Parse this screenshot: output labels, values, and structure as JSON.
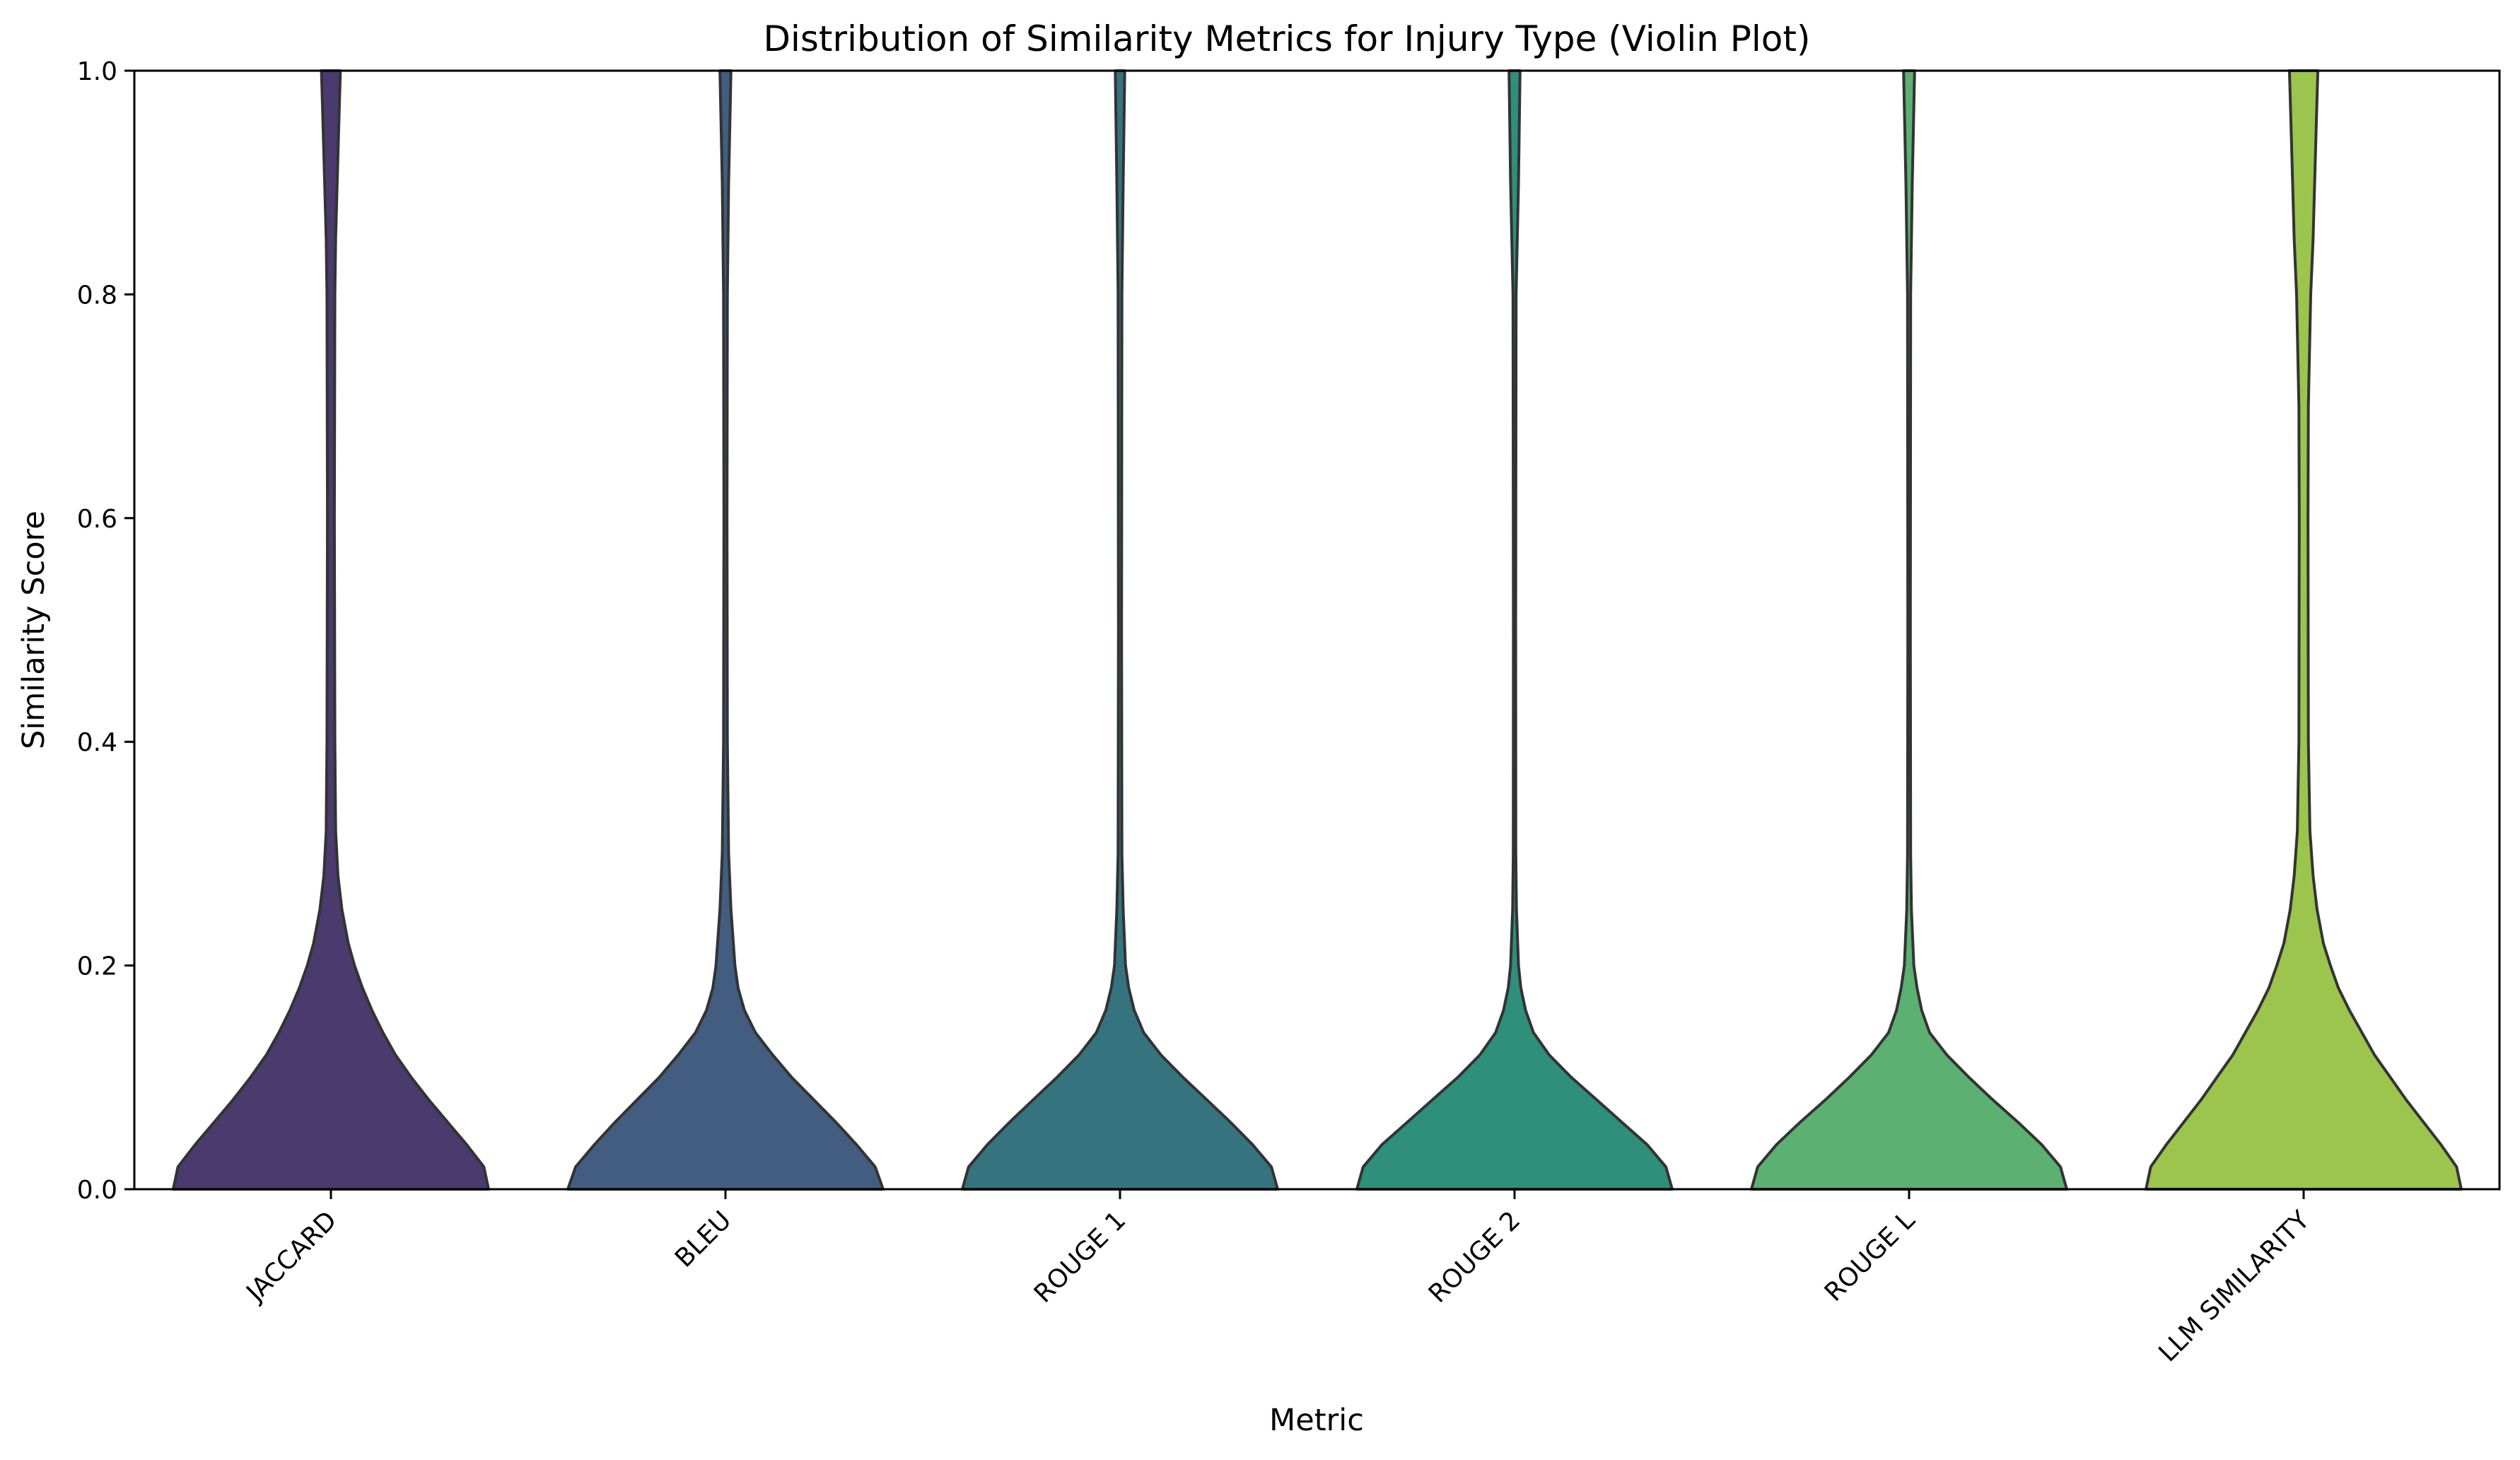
{
  "chart_data": {
    "type": "violin",
    "title": "Distribution of Similarity Metrics for Injury Type (Violin Plot)",
    "xlabel": "Metric",
    "ylabel": "Similarity Score",
    "ylim": [
      0,
      1.0
    ],
    "yticks": [
      "0.0",
      "0.2",
      "0.4",
      "0.6",
      "0.8",
      "1.0"
    ],
    "grid": false,
    "categories": [
      "JACCARD",
      "BLEU",
      "ROUGE 1",
      "ROUGE 2",
      "ROUGE L",
      "LLM SIMILARITY"
    ],
    "colors": [
      "#4a3a6e",
      "#425d80",
      "#35747f",
      "#2e8f7b",
      "#5bb072",
      "#9bc54c"
    ],
    "edge_color": "#333333",
    "density_profiles": [
      {
        "metric": "JACCARD",
        "points": [
          [
            0.0,
            1.0
          ],
          [
            0.02,
            0.97
          ],
          [
            0.04,
            0.86
          ],
          [
            0.06,
            0.74
          ],
          [
            0.08,
            0.62
          ],
          [
            0.1,
            0.51
          ],
          [
            0.12,
            0.41
          ],
          [
            0.14,
            0.33
          ],
          [
            0.16,
            0.26
          ],
          [
            0.18,
            0.2
          ],
          [
            0.2,
            0.15
          ],
          [
            0.22,
            0.11
          ],
          [
            0.25,
            0.07
          ],
          [
            0.28,
            0.045
          ],
          [
            0.32,
            0.03
          ],
          [
            0.4,
            0.025
          ],
          [
            0.6,
            0.022
          ],
          [
            0.8,
            0.025
          ],
          [
            0.85,
            0.03
          ],
          [
            0.9,
            0.04
          ],
          [
            0.95,
            0.05
          ],
          [
            1.0,
            0.06
          ]
        ]
      },
      {
        "metric": "BLEU",
        "points": [
          [
            0.0,
            1.0
          ],
          [
            0.02,
            0.95
          ],
          [
            0.04,
            0.83
          ],
          [
            0.06,
            0.7
          ],
          [
            0.08,
            0.56
          ],
          [
            0.1,
            0.42
          ],
          [
            0.12,
            0.3
          ],
          [
            0.14,
            0.19
          ],
          [
            0.16,
            0.12
          ],
          [
            0.18,
            0.08
          ],
          [
            0.2,
            0.06
          ],
          [
            0.25,
            0.035
          ],
          [
            0.3,
            0.02
          ],
          [
            0.4,
            0.012
          ],
          [
            0.6,
            0.01
          ],
          [
            0.8,
            0.012
          ],
          [
            0.9,
            0.02
          ],
          [
            1.0,
            0.035
          ]
        ]
      },
      {
        "metric": "ROUGE 1",
        "points": [
          [
            0.0,
            1.0
          ],
          [
            0.02,
            0.96
          ],
          [
            0.04,
            0.84
          ],
          [
            0.06,
            0.7
          ],
          [
            0.08,
            0.55
          ],
          [
            0.1,
            0.4
          ],
          [
            0.12,
            0.26
          ],
          [
            0.14,
            0.15
          ],
          [
            0.16,
            0.09
          ],
          [
            0.18,
            0.055
          ],
          [
            0.2,
            0.035
          ],
          [
            0.25,
            0.02
          ],
          [
            0.3,
            0.012
          ],
          [
            0.5,
            0.01
          ],
          [
            0.8,
            0.012
          ],
          [
            0.9,
            0.02
          ],
          [
            1.0,
            0.03
          ]
        ]
      },
      {
        "metric": "ROUGE 2",
        "points": [
          [
            0.0,
            1.0
          ],
          [
            0.02,
            0.96
          ],
          [
            0.04,
            0.84
          ],
          [
            0.06,
            0.68
          ],
          [
            0.08,
            0.52
          ],
          [
            0.1,
            0.36
          ],
          [
            0.12,
            0.22
          ],
          [
            0.14,
            0.12
          ],
          [
            0.16,
            0.07
          ],
          [
            0.18,
            0.04
          ],
          [
            0.2,
            0.025
          ],
          [
            0.25,
            0.012
          ],
          [
            0.3,
            0.008
          ],
          [
            0.5,
            0.007
          ],
          [
            0.8,
            0.01
          ],
          [
            0.9,
            0.025
          ],
          [
            1.0,
            0.035
          ]
        ]
      },
      {
        "metric": "ROUGE L",
        "points": [
          [
            0.0,
            1.0
          ],
          [
            0.02,
            0.96
          ],
          [
            0.04,
            0.84
          ],
          [
            0.06,
            0.69
          ],
          [
            0.08,
            0.53
          ],
          [
            0.1,
            0.38
          ],
          [
            0.12,
            0.24
          ],
          [
            0.14,
            0.13
          ],
          [
            0.16,
            0.08
          ],
          [
            0.18,
            0.05
          ],
          [
            0.2,
            0.03
          ],
          [
            0.25,
            0.015
          ],
          [
            0.3,
            0.01
          ],
          [
            0.5,
            0.008
          ],
          [
            0.8,
            0.01
          ],
          [
            0.9,
            0.02
          ],
          [
            1.0,
            0.035
          ]
        ]
      },
      {
        "metric": "LLM SIMILARITY",
        "points": [
          [
            0.0,
            1.0
          ],
          [
            0.02,
            0.97
          ],
          [
            0.04,
            0.87
          ],
          [
            0.06,
            0.76
          ],
          [
            0.08,
            0.65
          ],
          [
            0.1,
            0.55
          ],
          [
            0.12,
            0.45
          ],
          [
            0.14,
            0.37
          ],
          [
            0.16,
            0.29
          ],
          [
            0.18,
            0.22
          ],
          [
            0.2,
            0.17
          ],
          [
            0.22,
            0.125
          ],
          [
            0.25,
            0.085
          ],
          [
            0.28,
            0.06
          ],
          [
            0.32,
            0.04
          ],
          [
            0.4,
            0.03
          ],
          [
            0.6,
            0.028
          ],
          [
            0.7,
            0.03
          ],
          [
            0.8,
            0.045
          ],
          [
            0.85,
            0.06
          ],
          [
            0.9,
            0.07
          ],
          [
            0.95,
            0.08
          ],
          [
            1.0,
            0.09
          ]
        ]
      }
    ]
  }
}
